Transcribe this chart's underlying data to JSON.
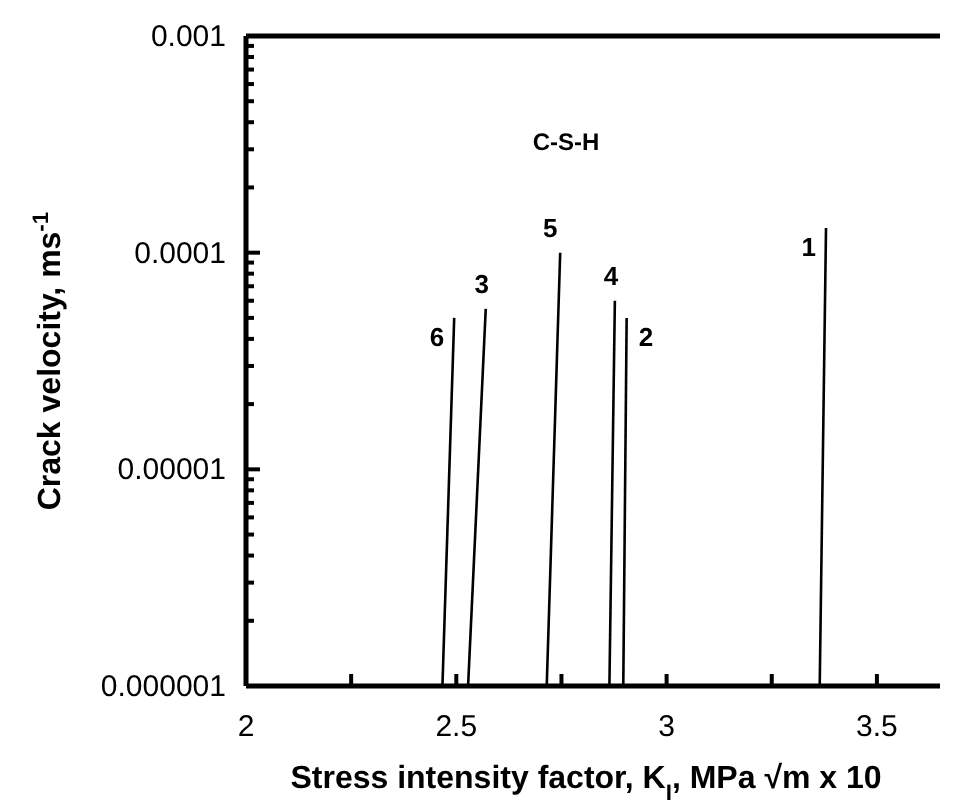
{
  "chart_data": {
    "type": "line",
    "xlabel": "Stress intensity factor, K$_{I}$, MPa √m x 10",
    "ylabel": "Crack velocity, ms$^{-1}$",
    "annotations": [
      "C-S-H"
    ],
    "log": "y",
    "grid": false,
    "marker": "none",
    "line_style": "solid",
    "xlim": [
      2,
      3.65
    ],
    "ylim": [
      1e-06,
      0.001
    ],
    "xticks": [
      2,
      {
        "value": 2.25,
        "label": null
      },
      2.5,
      {
        "value": 2.75,
        "label": null
      },
      3,
      {
        "value": 3.25,
        "label": null
      },
      3.5
    ],
    "yticks": [
      {
        "value": 1e-06,
        "label": "0.000001"
      },
      {
        "value": 2e-06,
        "label": null
      },
      {
        "value": 3e-06,
        "label": null
      },
      {
        "value": 4e-06,
        "label": null
      },
      {
        "value": 5e-06,
        "label": null
      },
      {
        "value": 6e-06,
        "label": null
      },
      {
        "value": 7e-06,
        "label": null
      },
      {
        "value": 8e-06,
        "label": null
      },
      {
        "value": 9e-06,
        "label": null
      },
      {
        "value": 1e-05,
        "label": "0.00001"
      },
      {
        "value": 2e-05,
        "label": null
      },
      {
        "value": 3e-05,
        "label": null
      },
      {
        "value": 4e-05,
        "label": null
      },
      {
        "value": 5e-05,
        "label": null
      },
      {
        "value": 6e-05,
        "label": null
      },
      {
        "value": 7e-05,
        "label": null
      },
      {
        "value": 8e-05,
        "label": null
      },
      {
        "value": 9e-05,
        "label": null
      },
      0.0001,
      {
        "value": 0.0002,
        "label": null
      },
      {
        "value": 0.0003,
        "label": null
      },
      {
        "value": 0.0004,
        "label": null
      },
      {
        "value": 0.0005,
        "label": null
      },
      {
        "value": 0.0006,
        "label": null
      },
      {
        "value": 0.0007,
        "label": null
      },
      {
        "value": 0.0008,
        "label": null
      },
      {
        "value": 0.0009,
        "label": null
      },
      0.001
    ],
    "series": [
      {
        "name": "1",
        "color": "#000000",
        "x": [
          3.364,
          3.379
        ],
        "values": [
          1e-06,
          0.00013
        ]
      },
      {
        "name": "2",
        "color": "#000000",
        "x": [
          2.897,
          2.905
        ],
        "values": [
          1e-06,
          5e-05
        ]
      },
      {
        "name": "3",
        "color": "#000000",
        "x": [
          2.528,
          2.57
        ],
        "values": [
          1e-06,
          5.5e-05
        ]
      },
      {
        "name": "4",
        "color": "#000000",
        "x": [
          2.864,
          2.877
        ],
        "values": [
          1e-06,
          6e-05
        ]
      },
      {
        "name": "5",
        "color": "#000000",
        "x": [
          2.715,
          2.747
        ],
        "values": [
          1e-06,
          0.0001
        ]
      },
      {
        "name": "6",
        "color": "#000000",
        "x": [
          2.467,
          2.495
        ],
        "values": [
          1e-06,
          5e-05
        ]
      }
    ]
  }
}
